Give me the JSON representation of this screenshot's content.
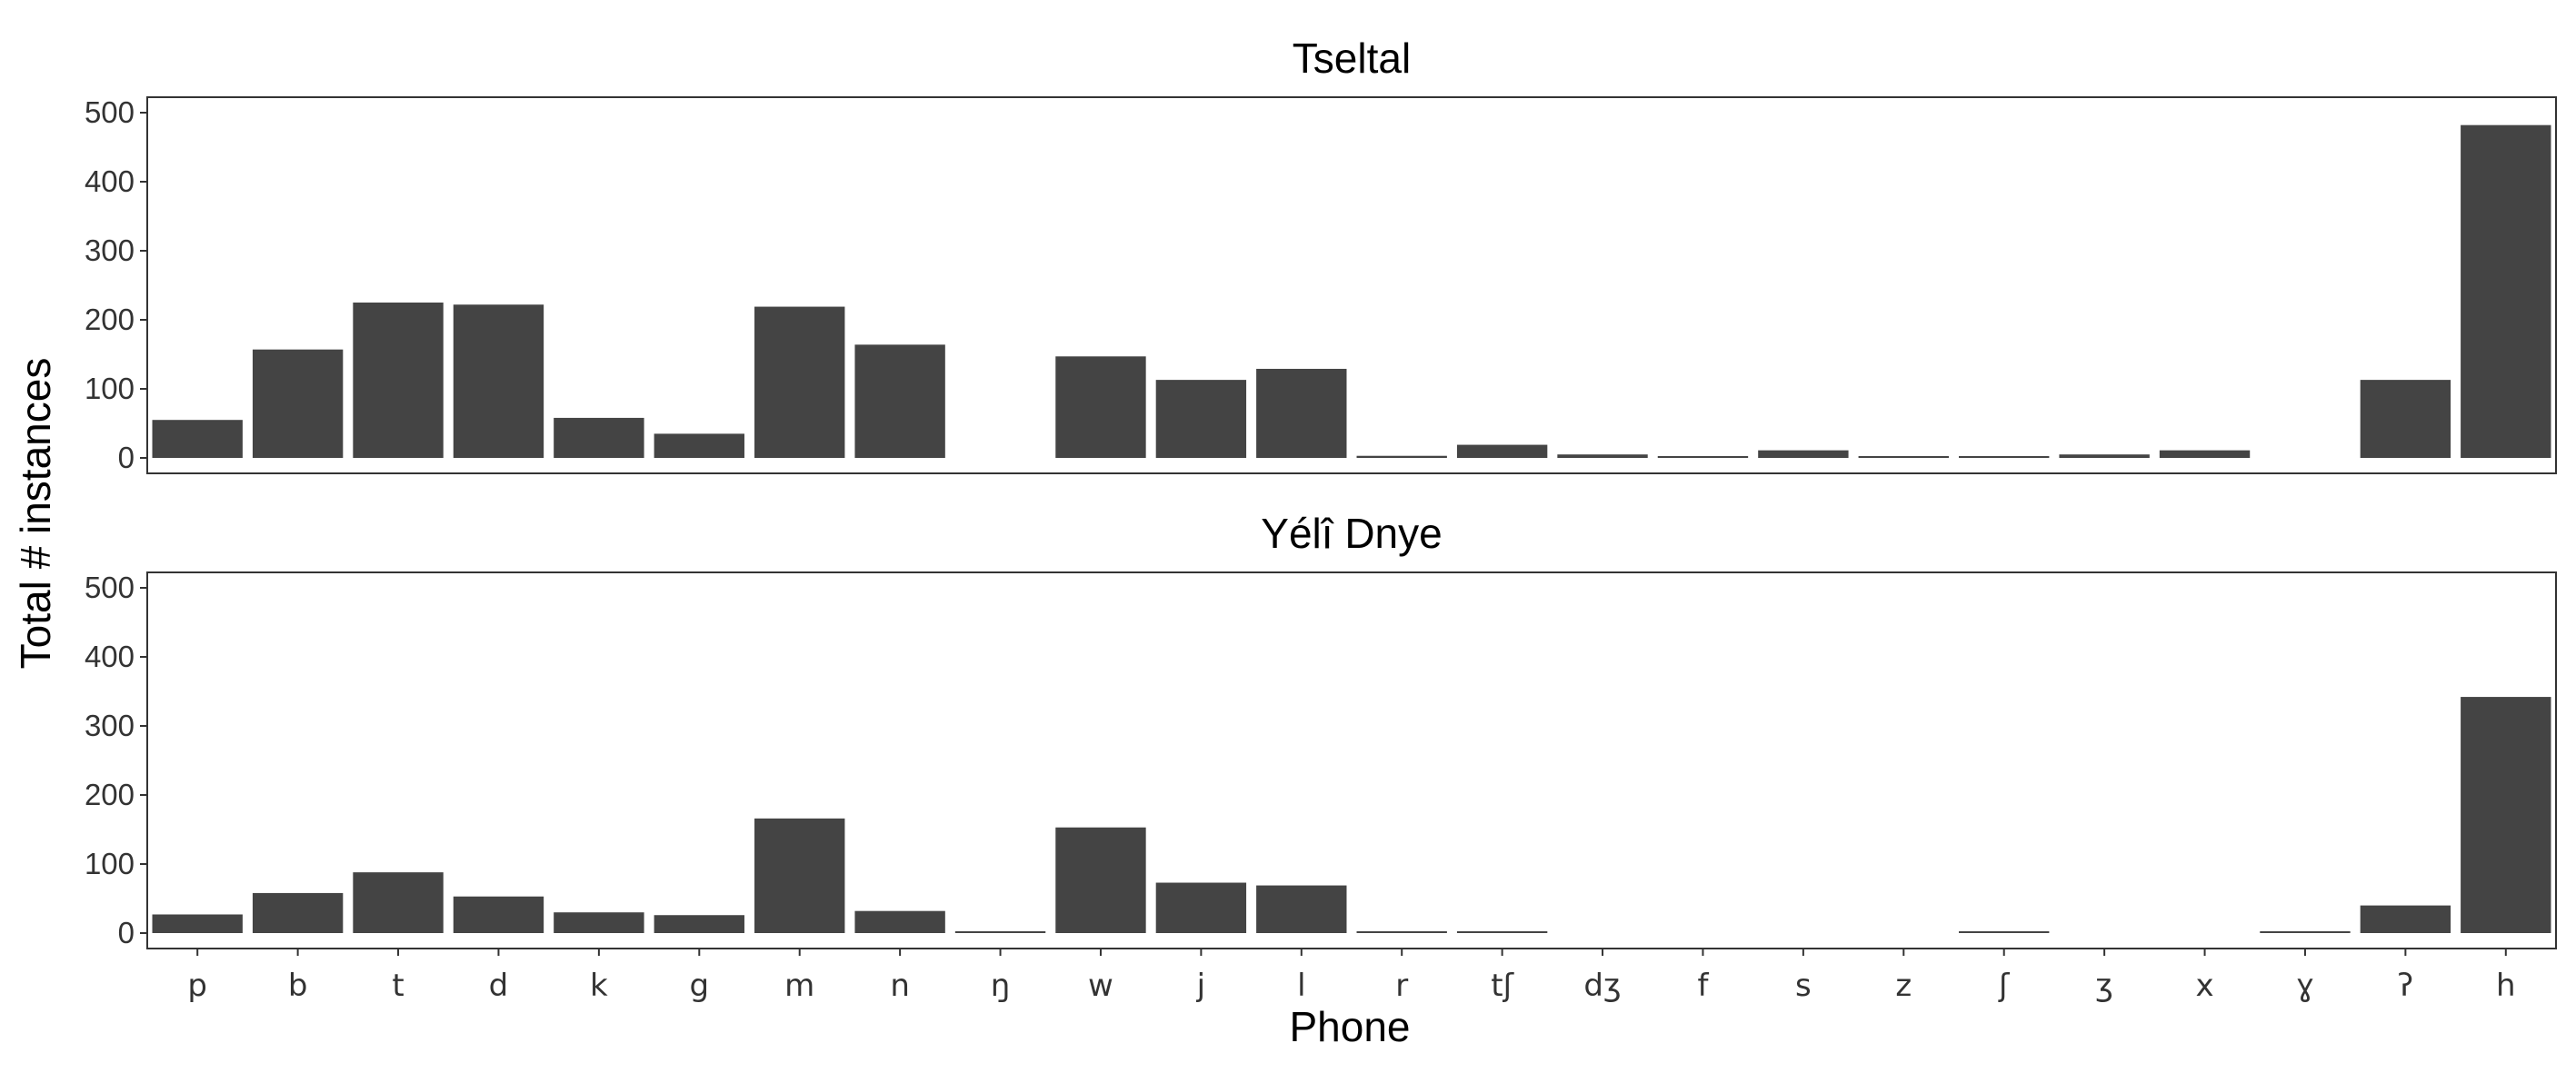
{
  "chart_data": {
    "type": "bar",
    "xlabel": "Phone",
    "ylabel": "Total # instances",
    "ylim": [
      0,
      500
    ],
    "yticks": [
      0,
      100,
      200,
      300,
      400,
      500
    ],
    "grid": false,
    "categories": [
      "p",
      "b",
      "t",
      "d",
      "k",
      "g",
      "m",
      "n",
      "ŋ",
      "w",
      "j",
      "l",
      "r",
      "tʃ",
      "dʒ",
      "f",
      "s",
      "z",
      "ʃ",
      "ʒ",
      "x",
      "ɣ",
      "ʔ",
      "h"
    ],
    "panels": [
      {
        "title": "Tseltal",
        "values": [
          55,
          157,
          225,
          222,
          58,
          35,
          219,
          164,
          0,
          147,
          113,
          129,
          3,
          19,
          5,
          1,
          11,
          1,
          2,
          5,
          11,
          0,
          113,
          482
        ]
      },
      {
        "title": "Yélî Dnye",
        "values": [
          27,
          58,
          88,
          53,
          30,
          26,
          166,
          32,
          1,
          153,
          73,
          69,
          1,
          2,
          0,
          0,
          0,
          0,
          1,
          0,
          0,
          1,
          40,
          342
        ]
      }
    ],
    "colors": {
      "bar": "#444444",
      "border": "#333333",
      "text": "#333333"
    }
  }
}
